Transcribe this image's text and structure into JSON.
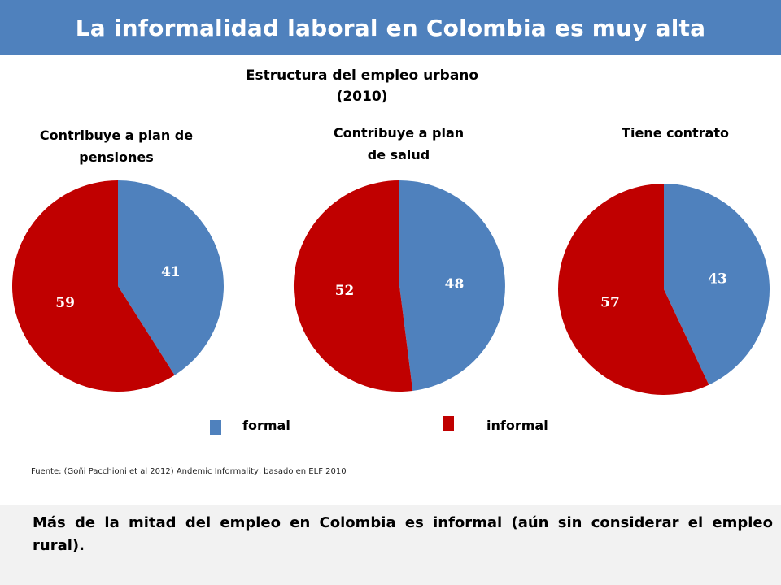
{
  "title": "La informalidad laboral en Colombia es muy alta",
  "colors": {
    "header": "#4f81bd",
    "formal": "#4f81bd",
    "informal": "#c00000"
  },
  "chart_data": {
    "type": "pie",
    "title": "Estructura del empleo urbano (2010)",
    "legend": [
      "formal",
      "informal"
    ],
    "pies": [
      {
        "title": "Contribuye a plan de pensiones",
        "formal": 41,
        "informal": 59
      },
      {
        "title": "Contribuye a plan de salud",
        "formal": 48,
        "informal": 52
      },
      {
        "title": "Tiene contrato",
        "formal": 43,
        "informal": 57
      }
    ]
  },
  "source": "Fuente: (Goñi Pacchioni et al 2012) Andemic Informality, basado en ELF 2010",
  "conclusion": "Más de la mitad del empleo en Colombia es informal (aún sin considerar el empleo rural)."
}
